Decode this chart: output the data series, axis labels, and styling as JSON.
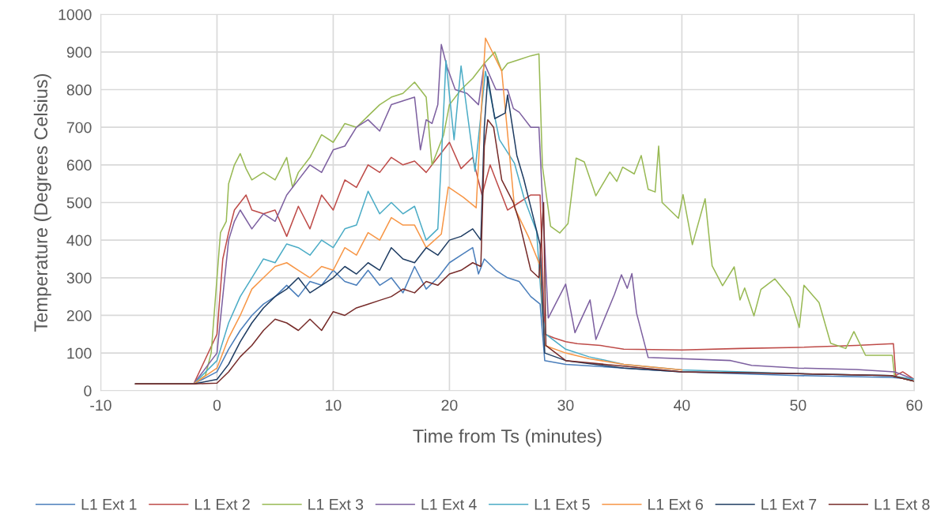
{
  "chart_data": {
    "type": "line",
    "xlabel": "Time from Ts (minutes)",
    "ylabel": "Temperature (Degrees Celsius)",
    "xlim": [
      -10,
      60
    ],
    "xticks": [
      -10,
      0,
      10,
      20,
      30,
      40,
      50,
      60
    ],
    "ylim": [
      0,
      1000
    ],
    "yticks": [
      0,
      100,
      200,
      300,
      400,
      500,
      600,
      700,
      800,
      900,
      1000
    ],
    "grid": true,
    "legend": "bottom",
    "marker": "none",
    "line_style": "solid",
    "series": [
      {
        "name": "L1 Ext 1",
        "color": "#4a7ebb",
        "x": [
          -7,
          -2,
          0,
          1,
          2,
          3,
          4,
          5,
          6,
          7,
          8,
          9,
          10,
          11,
          12,
          13,
          14,
          15,
          16,
          17,
          18,
          19,
          20,
          21,
          22,
          22.5,
          23,
          24,
          25,
          26,
          27,
          27.8,
          28.2,
          30,
          35,
          40,
          50,
          58,
          60
        ],
        "values": [
          18,
          18,
          50,
          110,
          160,
          200,
          230,
          250,
          280,
          250,
          290,
          280,
          320,
          290,
          280,
          320,
          280,
          300,
          260,
          330,
          270,
          300,
          340,
          360,
          380,
          310,
          350,
          320,
          300,
          290,
          250,
          230,
          80,
          70,
          60,
          50,
          40,
          35,
          30
        ]
      },
      {
        "name": "L1 Ext 2",
        "color": "#be4b48",
        "x": [
          -7,
          -2,
          0,
          0.5,
          1,
          1.5,
          2,
          2.5,
          3,
          4,
          5,
          6,
          7,
          8,
          9,
          10,
          11,
          12,
          13,
          14,
          15,
          16,
          17,
          18,
          19,
          20,
          21,
          22,
          22.8,
          23.5,
          24,
          25,
          26,
          27,
          27.8,
          28.2,
          29,
          30,
          31,
          33,
          35,
          40,
          45,
          50,
          55,
          58.2,
          58.4,
          59,
          60
        ],
        "values": [
          18,
          18,
          150,
          350,
          420,
          480,
          500,
          520,
          480,
          470,
          480,
          410,
          490,
          430,
          520,
          480,
          560,
          540,
          600,
          580,
          620,
          600,
          610,
          580,
          620,
          660,
          590,
          620,
          520,
          600,
          560,
          480,
          500,
          520,
          520,
          150,
          140,
          130,
          125,
          120,
          110,
          108,
          112,
          115,
          120,
          125,
          40,
          50,
          30
        ]
      },
      {
        "name": "L1 Ext 3",
        "color": "#98b954",
        "x": [
          -7,
          -2,
          -1,
          -0.5,
          0,
          0.3,
          0.8,
          1,
          1.5,
          2,
          2.5,
          3,
          4,
          5,
          6,
          6.5,
          7,
          8,
          9,
          10,
          11,
          12,
          13,
          14,
          15,
          16,
          17,
          18,
          18.5,
          19.5,
          20,
          21,
          22,
          23,
          23.9,
          24.5,
          25,
          26,
          27,
          27.7,
          28.0,
          28.7,
          29.5,
          30.2,
          30.9,
          31.6,
          32.6,
          33.8,
          34.4,
          34.9,
          35.9,
          36.5,
          37.1,
          37.7,
          38.0,
          38.3,
          39.7,
          40.1,
          40.9,
          42.0,
          42.6,
          43.5,
          44.5,
          45.0,
          45.4,
          46.2,
          46.8,
          48.0,
          49.3,
          50.1,
          50.5,
          51.8,
          52.8,
          54.1,
          54.8,
          55.8,
          58.1,
          58.3,
          60
        ],
        "values": [
          18,
          18,
          40,
          100,
          300,
          420,
          450,
          550,
          600,
          630,
          590,
          560,
          580,
          560,
          620,
          540,
          580,
          620,
          680,
          660,
          710,
          700,
          730,
          760,
          780,
          790,
          820,
          780,
          600,
          680,
          760,
          800,
          830,
          870,
          900,
          850,
          870,
          880,
          890,
          895,
          597,
          437,
          419,
          444,
          618,
          608,
          518,
          581,
          556,
          594,
          576,
          625,
          535,
          528,
          650,
          500,
          458,
          521,
          388,
          510,
          332,
          279,
          329,
          241,
          273,
          199,
          269,
          297,
          248,
          168,
          280,
          234,
          126,
          112,
          157,
          94,
          94,
          38,
          25
        ]
      },
      {
        "name": "L1 Ext 4",
        "color": "#7d60a0",
        "x": [
          -7,
          -2,
          0,
          0.5,
          1,
          1.5,
          2,
          3,
          4,
          5,
          6,
          7,
          8,
          9,
          10,
          11,
          12,
          13,
          14,
          15,
          16,
          17,
          17.5,
          18,
          18.5,
          19,
          19.3,
          19.8,
          20.5,
          21.5,
          22.5,
          23,
          24,
          25,
          25.5,
          26,
          27,
          27.7,
          28.5,
          30.0,
          30.8,
          32.1,
          32.6,
          34.2,
          34.8,
          35.3,
          35.7,
          36.1,
          37.1,
          44.2,
          46,
          50,
          55,
          58.3,
          60
        ],
        "values": [
          18,
          18,
          100,
          250,
          400,
          450,
          480,
          430,
          470,
          450,
          520,
          560,
          600,
          580,
          640,
          650,
          700,
          720,
          690,
          760,
          770,
          780,
          640,
          720,
          710,
          760,
          920,
          860,
          800,
          790,
          760,
          870,
          800,
          800,
          750,
          740,
          700,
          700,
          193,
          283,
          154,
          241,
          136,
          256,
          308,
          272,
          311,
          206,
          88,
          80,
          67,
          60,
          56,
          50,
          30
        ]
      },
      {
        "name": "L1 Ext 5",
        "color": "#4bacc6",
        "x": [
          -7,
          -2,
          0,
          1,
          2,
          3,
          4,
          5,
          6,
          7,
          8,
          9,
          10,
          11,
          12,
          13,
          14,
          15,
          16,
          17,
          18,
          19,
          19.3,
          19.7,
          20.4,
          21.0,
          22.2,
          23.1,
          24.3,
          25.6,
          26.4,
          27.5,
          28.0,
          28.3,
          30,
          32,
          35,
          40,
          50,
          58,
          60
        ],
        "values": [
          18,
          18,
          80,
          180,
          250,
          300,
          350,
          340,
          390,
          380,
          360,
          400,
          380,
          430,
          440,
          530,
          470,
          500,
          470,
          490,
          400,
          430,
          612,
          877,
          667,
          863,
          583,
          849,
          667,
          604,
          514,
          423,
          199,
          150,
          110,
          90,
          70,
          55,
          45,
          40,
          30
        ]
      },
      {
        "name": "L1 Ext 6",
        "color": "#f79646",
        "x": [
          -7,
          -2,
          0,
          1,
          2,
          3,
          4,
          5,
          6,
          7,
          8,
          9,
          10,
          11,
          12,
          13,
          14,
          15,
          16,
          17,
          18,
          19.3,
          19.9,
          21.2,
          22.3,
          22.7,
          23.1,
          24.5,
          25.6,
          26.8,
          27.8,
          28.2,
          30,
          32,
          35,
          40,
          50,
          58,
          60
        ],
        "values": [
          18,
          18,
          60,
          140,
          200,
          270,
          300,
          330,
          340,
          320,
          300,
          330,
          320,
          380,
          360,
          420,
          400,
          460,
          440,
          440,
          380,
          416,
          541,
          514,
          486,
          723,
          937,
          849,
          486,
          409,
          332,
          120,
          100,
          85,
          70,
          55,
          null,
          40,
          25
        ]
      },
      {
        "name": "L1 Ext 7",
        "color": "#1f3d63",
        "x": [
          -7,
          -2,
          0,
          1,
          2,
          3,
          4,
          5,
          6,
          7,
          8,
          9,
          10,
          11,
          12,
          13,
          14,
          15,
          16,
          17,
          18,
          19,
          20,
          21,
          22,
          22.7,
          23,
          23.3,
          23.9,
          24.8,
          25.0,
          25.8,
          26.4,
          27.8,
          28.2,
          30,
          35,
          40,
          50,
          58,
          60
        ],
        "values": [
          18,
          18,
          30,
          70,
          130,
          180,
          220,
          250,
          270,
          300,
          260,
          280,
          300,
          330,
          310,
          340,
          320,
          380,
          350,
          340,
          380,
          360,
          400,
          410,
          430,
          400,
          700,
          835,
          723,
          738,
          786,
          625,
          562,
          388,
          100,
          80,
          60,
          50,
          45,
          40,
          25
        ]
      },
      {
        "name": "L1 Ext 8",
        "color": "#772c2a",
        "x": [
          -7,
          -2,
          0,
          1,
          2,
          3,
          4,
          5,
          6,
          7,
          8,
          9,
          10,
          11,
          12,
          13,
          14,
          15,
          16,
          17,
          18,
          19,
          20,
          21,
          22,
          22.7,
          23,
          23.3,
          23.8,
          24.5,
          25.5,
          26,
          27,
          27.7,
          28.1,
          28.3,
          30,
          35,
          40,
          50,
          58,
          60
        ],
        "values": [
          18,
          18,
          20,
          50,
          90,
          120,
          160,
          190,
          180,
          160,
          190,
          160,
          210,
          200,
          220,
          230,
          240,
          250,
          270,
          260,
          290,
          280,
          310,
          320,
          340,
          330,
          650,
          720,
          700,
          560,
          500,
          450,
          320,
          300,
          500,
          120,
          80,
          65,
          50,
          45,
          40,
          25
        ]
      }
    ]
  }
}
